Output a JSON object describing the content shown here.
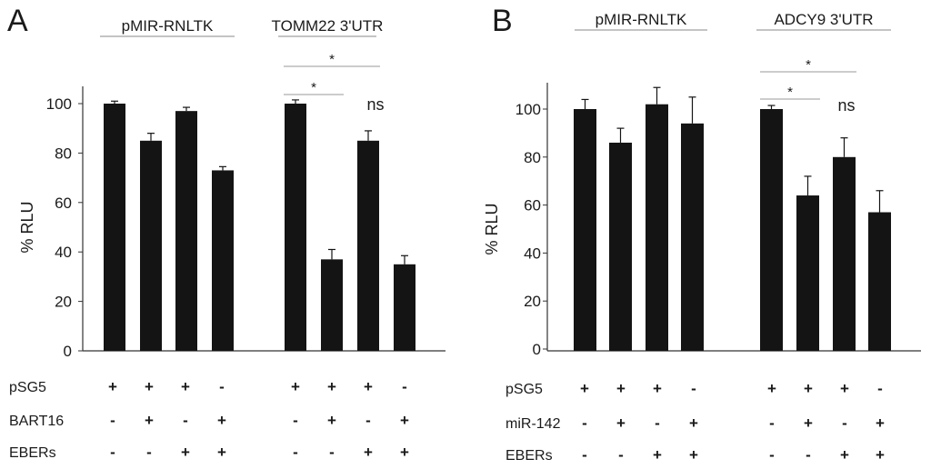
{
  "chart_data": [
    {
      "type": "bar",
      "panel": "A",
      "ylabel": "% RLU",
      "ylim": [
        0,
        100
      ],
      "yticks": [
        0,
        20,
        40,
        60,
        80,
        100
      ],
      "groups": [
        {
          "label": "pMIR-RNLTK",
          "values": [
            100,
            85,
            97,
            73
          ],
          "errors": [
            1,
            3,
            1.5,
            1.5
          ]
        },
        {
          "label": "TOMM22 3'UTR",
          "values": [
            100,
            37,
            85,
            35
          ],
          "errors": [
            1.5,
            4,
            4,
            3.5
          ]
        }
      ],
      "conditions": [
        {
          "label": "pSG5",
          "signs": [
            "+",
            "+",
            "+",
            "-",
            "+",
            "+",
            "+",
            "-"
          ]
        },
        {
          "label": "BART16",
          "signs": [
            "-",
            "+",
            "-",
            "+",
            "-",
            "+",
            "-",
            "+"
          ]
        },
        {
          "label": "EBERs",
          "signs": [
            "-",
            "-",
            "+",
            "+",
            "-",
            "-",
            "+",
            "+"
          ]
        }
      ],
      "annotations": [
        {
          "text": "*",
          "group": 1,
          "from_bar": 0,
          "to_bar": 1
        },
        {
          "text": "*",
          "group": 1,
          "from_bar": 0,
          "to_bar": 2
        },
        {
          "text": "ns",
          "group": 1,
          "bar": 2
        }
      ]
    },
    {
      "type": "bar",
      "panel": "B",
      "ylabel": "% RLU",
      "ylim": [
        0,
        100
      ],
      "yticks": [
        0,
        20,
        40,
        60,
        80,
        100
      ],
      "groups": [
        {
          "label": "pMIR-RNLTK",
          "values": [
            100,
            86,
            102,
            94
          ],
          "errors": [
            4,
            6,
            7,
            11
          ]
        },
        {
          "label": "ADCY9 3'UTR",
          "values": [
            100,
            64,
            80,
            57
          ],
          "errors": [
            1.5,
            8,
            8,
            9
          ]
        }
      ],
      "conditions": [
        {
          "label": "pSG5",
          "signs": [
            "+",
            "+",
            "+",
            "-",
            "+",
            "+",
            "+",
            "-"
          ]
        },
        {
          "label": "miR-142",
          "signs": [
            "-",
            "+",
            "-",
            "+",
            "-",
            "+",
            "-",
            "+"
          ]
        },
        {
          "label": "EBERs",
          "signs": [
            "-",
            "-",
            "+",
            "+",
            "-",
            "-",
            "+",
            "+"
          ]
        }
      ],
      "annotations": [
        {
          "text": "*",
          "group": 1,
          "from_bar": 0,
          "to_bar": 1
        },
        {
          "text": "*",
          "group": 1,
          "from_bar": 0,
          "to_bar": 2
        },
        {
          "text": "ns",
          "group": 1,
          "bar": 2
        }
      ]
    }
  ]
}
